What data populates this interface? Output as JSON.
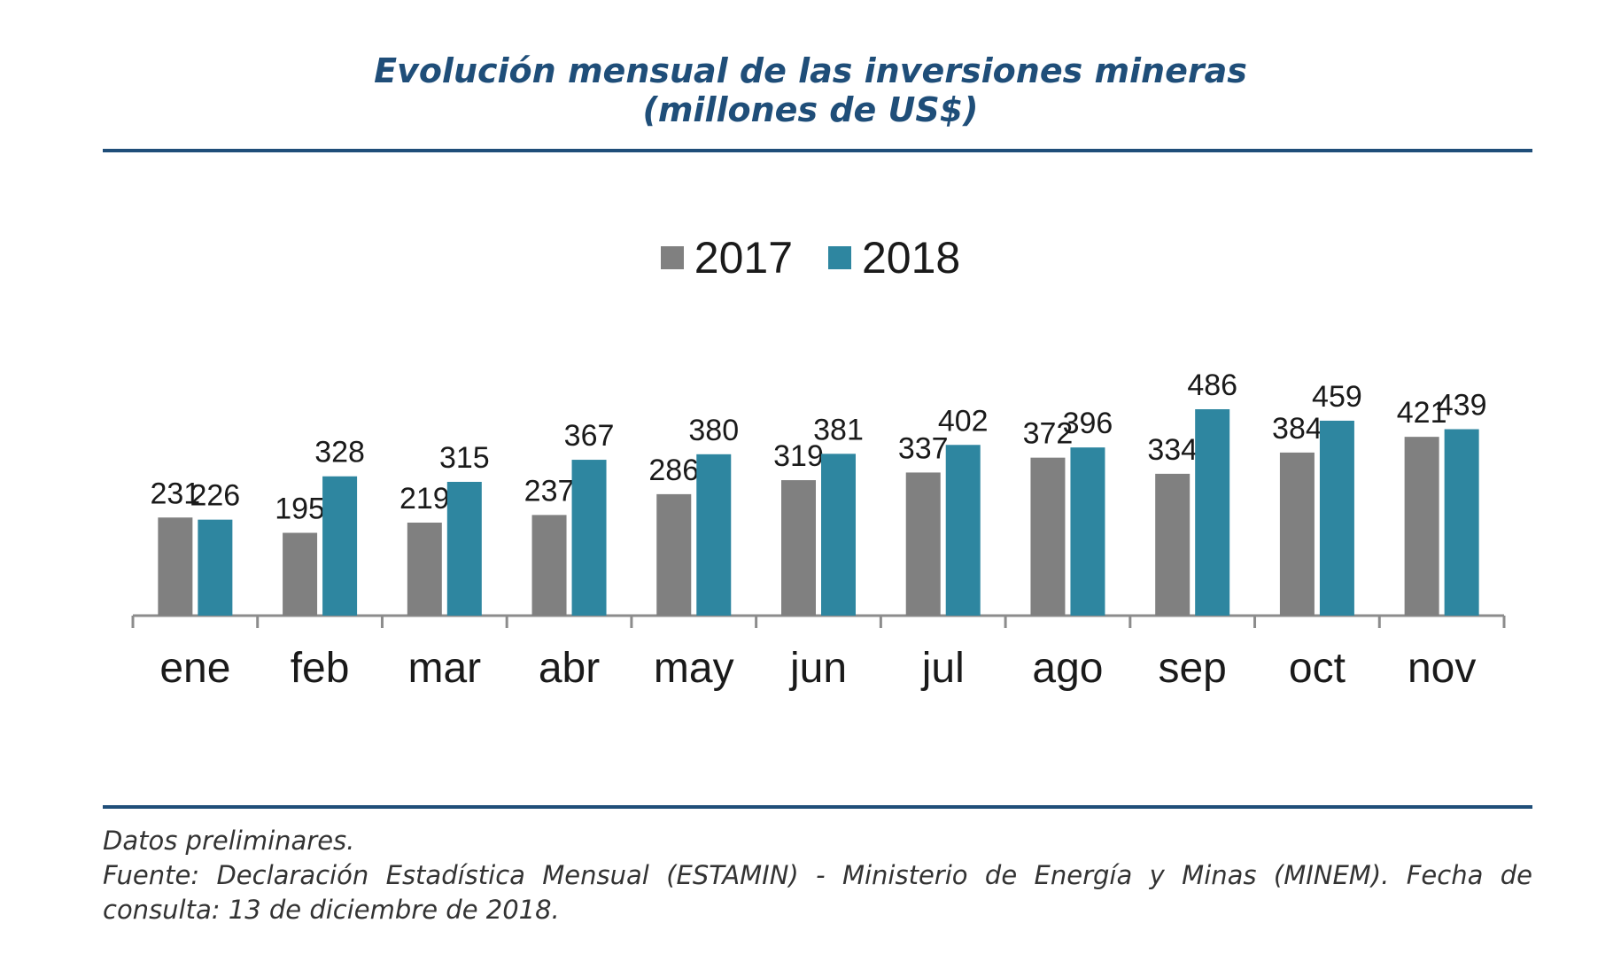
{
  "title_line1": "Evolución mensual de las inversiones mineras",
  "title_line2": "(millones de US$)",
  "colors": {
    "accent": "#1f4e79",
    "series_2017": "#808080",
    "series_2018": "#2e86a0"
  },
  "chart_data": {
    "type": "bar",
    "categories": [
      "ene",
      "feb",
      "mar",
      "abr",
      "may",
      "jun",
      "jul",
      "ago",
      "sep",
      "oct",
      "nov"
    ],
    "series": [
      {
        "name": "2017",
        "values": [
          231,
          195,
          219,
          237,
          286,
          319,
          337,
          372,
          334,
          384,
          421
        ]
      },
      {
        "name": "2018",
        "values": [
          226,
          328,
          315,
          367,
          380,
          381,
          402,
          396,
          486,
          459,
          439
        ]
      }
    ],
    "title": "Evolución mensual de las inversiones mineras (millones de US$)",
    "legend_position": "top-center",
    "grid": false,
    "data_labels": true
  },
  "footer": {
    "note": "Datos preliminares.",
    "source": "Fuente: Declaración Estadística Mensual (ESTAMIN) - Ministerio de Energía y Minas (MINEM). Fecha de consulta: 13 de diciembre de 2018."
  }
}
